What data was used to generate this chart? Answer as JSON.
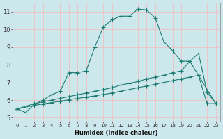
{
  "xlabel": "Humidex (Indice chaleur)",
  "ylabel": "",
  "xlim": [
    -0.5,
    23.5
  ],
  "ylim": [
    4.8,
    11.5
  ],
  "xticks": [
    0,
    1,
    2,
    3,
    4,
    5,
    6,
    7,
    8,
    9,
    10,
    11,
    12,
    13,
    14,
    15,
    16,
    17,
    18,
    19,
    20,
    21,
    22,
    23
  ],
  "yticks": [
    5,
    6,
    7,
    8,
    9,
    10,
    11
  ],
  "bg_color": "#cde8ed",
  "line_color": "#1a7a6e",
  "grid_major_color": "#b8d0d4",
  "grid_minor_color": "#f0c0c0",
  "line1_x": [
    0,
    1,
    2,
    3,
    4,
    5,
    6,
    7,
    8,
    9,
    10,
    11,
    12,
    13,
    14,
    15,
    16,
    17,
    18,
    19,
    20,
    21,
    22,
    23
  ],
  "line1_y": [
    5.5,
    5.3,
    5.75,
    6.0,
    6.3,
    6.5,
    7.55,
    7.55,
    7.65,
    9.0,
    10.15,
    10.55,
    10.75,
    10.75,
    11.15,
    11.1,
    10.65,
    9.3,
    8.8,
    8.2,
    8.2,
    8.65,
    6.45,
    5.8
  ],
  "line2_x": [
    0,
    2,
    3,
    4,
    5,
    6,
    7,
    8,
    9,
    10,
    11,
    12,
    13,
    14,
    15,
    16,
    17,
    18,
    19,
    20,
    21,
    23
  ],
  "line2_y": [
    5.5,
    5.8,
    5.9,
    6.0,
    6.1,
    6.2,
    6.3,
    6.4,
    6.5,
    6.6,
    6.7,
    6.85,
    6.95,
    7.05,
    7.2,
    7.3,
    7.4,
    7.55,
    7.65,
    8.2,
    7.4,
    5.8
  ],
  "line3_x": [
    0,
    2,
    3,
    4,
    5,
    6,
    7,
    8,
    9,
    10,
    11,
    12,
    13,
    14,
    15,
    16,
    17,
    18,
    19,
    20,
    21,
    22,
    23
  ],
  "line3_y": [
    5.5,
    5.7,
    5.78,
    5.86,
    5.94,
    6.02,
    6.1,
    6.17,
    6.24,
    6.32,
    6.4,
    6.5,
    6.6,
    6.7,
    6.8,
    6.9,
    7.0,
    7.1,
    7.2,
    7.3,
    7.4,
    5.8,
    5.8
  ]
}
